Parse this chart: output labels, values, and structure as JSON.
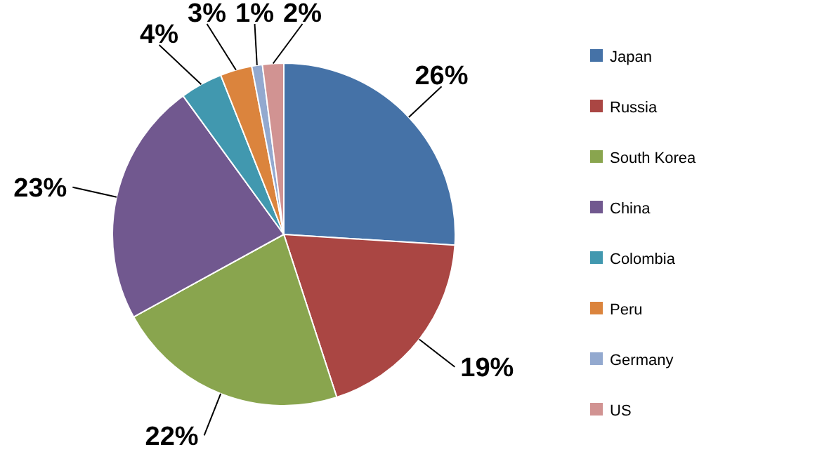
{
  "chart_data": {
    "type": "pie",
    "categories": [
      "Japan",
      "Russia",
      "South Korea",
      "China",
      "Colombia",
      "Peru",
      "Germany",
      "US"
    ],
    "values": [
      26,
      19,
      22,
      23,
      4,
      3,
      1,
      2
    ],
    "colors": [
      "#4572a7",
      "#aa4643",
      "#89a54e",
      "#71588f",
      "#4198af",
      "#db843d",
      "#93a9cf",
      "#d19392"
    ],
    "value_labels": [
      "26%",
      "19%",
      "22%",
      "23%",
      "4%",
      "3%",
      "1%",
      "2%"
    ],
    "legend": "right"
  }
}
